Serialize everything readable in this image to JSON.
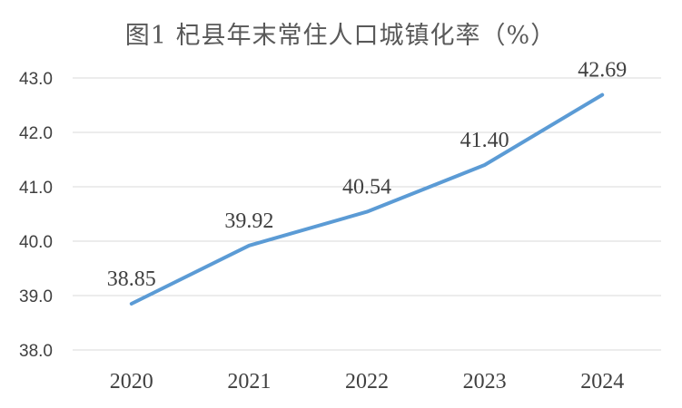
{
  "chart_data": {
    "type": "line",
    "title": "图1  杞县年末常住人口城镇化率（%）",
    "categories": [
      "2020",
      "2021",
      "2022",
      "2023",
      "2024"
    ],
    "series": [
      {
        "values": [
          38.85,
          39.92,
          40.54,
          41.4,
          42.69
        ],
        "labels": [
          "38.85",
          "39.92",
          "40.54",
          "41.40",
          "42.69"
        ]
      }
    ],
    "ylim": [
      38.0,
      43.0
    ],
    "yticks": [
      "38.0",
      "39.0",
      "40.0",
      "41.0",
      "42.0",
      "43.0"
    ],
    "grid": true,
    "line_color": "#5b9bd5",
    "grid_color": "#d9d9d9"
  }
}
